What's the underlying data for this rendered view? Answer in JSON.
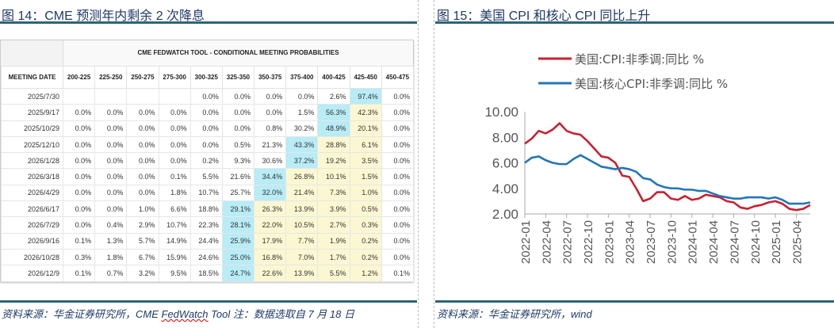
{
  "left": {
    "title": "图 14：CME 预测年内剩余 2 次降息",
    "footer_prefix": "资料来源：华金证券研究所，CME ",
    "footer_fw": "FedWatch",
    "footer_suffix": " Tool  注：数据选取自 7 月 18 日",
    "table": {
      "title": "CME FEDWATCH TOOL - CONDITIONAL MEETING PROBABILITIES",
      "headers": [
        "MEETING DATE",
        "200-225",
        "225-250",
        "250-275",
        "275-300",
        "300-325",
        "325-350",
        "350-375",
        "375-400",
        "400-425",
        "425-450",
        "450-475"
      ],
      "rows": [
        [
          "2025/7/30",
          "",
          "",
          "",
          "",
          "0.0%",
          "0.0%",
          "0.0%",
          "0.0%",
          "2.6%",
          "97.4%",
          "0.0%"
        ],
        [
          "2025/9/17",
          "0.0%",
          "0.0%",
          "0.0%",
          "0.0%",
          "0.0%",
          "0.0%",
          "0.0%",
          "1.5%",
          "56.3%",
          "42.3%",
          "0.0%"
        ],
        [
          "2025/10/29",
          "0.0%",
          "0.0%",
          "0.0%",
          "0.0%",
          "0.0%",
          "0.0%",
          "0.8%",
          "30.2%",
          "48.9%",
          "20.1%",
          "0.0%"
        ],
        [
          "2025/12/10",
          "0.0%",
          "0.0%",
          "0.0%",
          "0.0%",
          "0.0%",
          "0.5%",
          "21.3%",
          "43.3%",
          "28.8%",
          "6.1%",
          "0.0%"
        ],
        [
          "2026/1/28",
          "0.0%",
          "0.0%",
          "0.0%",
          "0.0%",
          "0.2%",
          "9.3%",
          "30.6%",
          "37.2%",
          "19.2%",
          "3.5%",
          "0.0%"
        ],
        [
          "2026/3/18",
          "0.0%",
          "0.0%",
          "0.0%",
          "0.1%",
          "5.5%",
          "21.6%",
          "34.4%",
          "26.8%",
          "10.1%",
          "1.5%",
          "0.0%"
        ],
        [
          "2026/4/29",
          "0.0%",
          "0.0%",
          "0.0%",
          "1.8%",
          "10.7%",
          "25.7%",
          "32.0%",
          "21.4%",
          "7.3%",
          "1.0%",
          "0.0%"
        ],
        [
          "2026/6/17",
          "0.0%",
          "0.0%",
          "1.0%",
          "6.6%",
          "18.8%",
          "29.1%",
          "26.3%",
          "13.9%",
          "3.9%",
          "0.5%",
          "0.0%"
        ],
        [
          "2026/7/29",
          "0.0%",
          "0.4%",
          "2.9%",
          "10.7%",
          "22.3%",
          "28.1%",
          "22.0%",
          "10.5%",
          "2.7%",
          "0.3%",
          "0.0%"
        ],
        [
          "2026/9/16",
          "0.1%",
          "1.3%",
          "5.7%",
          "14.9%",
          "24.4%",
          "25.9%",
          "17.9%",
          "7.7%",
          "1.9%",
          "0.2%",
          "0.0%"
        ],
        [
          "2026/10/28",
          "0.3%",
          "1.8%",
          "6.7%",
          "15.9%",
          "24.6%",
          "25.0%",
          "16.8%",
          "7.0%",
          "1.7%",
          "0.2%",
          "0.0%"
        ],
        [
          "2026/12/9",
          "0.1%",
          "0.7%",
          "3.2%",
          "9.5%",
          "18.5%",
          "24.7%",
          "22.6%",
          "13.9%",
          "5.5%",
          "1.2%",
          "0.1%"
        ]
      ],
      "highlight_colors": {
        "mode": "#b8ecf6",
        "between": "#fbf7d2"
      }
    }
  },
  "right": {
    "title": "图 15：美国 CPI 和核心 CPI 同比上升",
    "footer": "资料来源：华金证券研究所，wind"
  },
  "chart_data": {
    "type": "line",
    "ylim": [
      2,
      10
    ],
    "yticks": [
      "2.00",
      "4.00",
      "6.00",
      "8.00",
      "10.00"
    ],
    "xticks": [
      "2022-01",
      "2022-04",
      "2022-07",
      "2022-10",
      "2023-01",
      "2023-04",
      "2023-07",
      "2023-10",
      "2024-01",
      "2024-04",
      "2024-07",
      "2024-10",
      "2025-01",
      "2025-04"
    ],
    "x_start": "2022-01",
    "x_end": "2025-06",
    "legend": "top",
    "series": [
      {
        "name": "美国:CPI:非季调:同比 %",
        "color": "#c8202f",
        "values": [
          7.5,
          7.9,
          8.5,
          8.3,
          8.6,
          9.1,
          8.5,
          8.3,
          8.2,
          7.7,
          7.1,
          6.5,
          6.4,
          6.0,
          5.0,
          4.9,
          4.0,
          3.0,
          3.2,
          3.7,
          3.7,
          3.2,
          3.1,
          3.4,
          3.1,
          3.2,
          3.5,
          3.4,
          3.3,
          3.0,
          2.9,
          2.5,
          2.4,
          2.6,
          2.7,
          2.9,
          3.0,
          2.8,
          2.4,
          2.3,
          2.4,
          2.7
        ]
      },
      {
        "name": "美国:核心CPI:非季调:同比 %",
        "color": "#2176b8",
        "values": [
          6.0,
          6.4,
          6.5,
          6.2,
          6.0,
          5.9,
          5.9,
          6.3,
          6.6,
          6.3,
          6.0,
          5.7,
          5.6,
          5.5,
          5.6,
          5.5,
          5.3,
          4.8,
          4.7,
          4.3,
          4.1,
          4.0,
          4.0,
          3.9,
          3.9,
          3.8,
          3.8,
          3.6,
          3.4,
          3.3,
          3.2,
          3.2,
          3.3,
          3.3,
          3.3,
          3.2,
          3.3,
          3.1,
          2.8,
          2.8,
          2.8,
          2.9
        ]
      }
    ]
  }
}
